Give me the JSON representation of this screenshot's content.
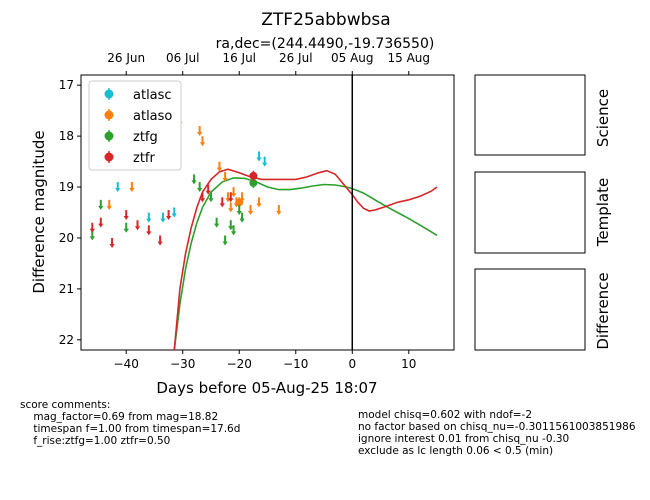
{
  "chart_data": {
    "type": "scatter",
    "title": "ZTF25abbwbsa",
    "subtitle": "ra,dec=(244.4490,-19.736550)",
    "xlabel": "Days before 05-Aug-25 18:07",
    "ylabel": "Difference magnitude",
    "xlim": [
      -48,
      18
    ],
    "ylim": [
      22.2,
      16.8
    ],
    "y_inverted": true,
    "grid": false,
    "legend_position": "upper-left",
    "x_ticks": [
      "−40",
      "−30",
      "−20",
      "−10",
      "0",
      "10"
    ],
    "x_tick_values": [
      -40,
      -30,
      -20,
      -10,
      0,
      10
    ],
    "y_ticks": [
      "17",
      "18",
      "19",
      "20",
      "21",
      "22"
    ],
    "y_tick_values": [
      17,
      18,
      19,
      20,
      21,
      22
    ],
    "top_axis_ticks": [
      "26 Jun",
      "06 Jul",
      "16 Jul",
      "26 Jul",
      "05 Aug",
      "15 Aug"
    ],
    "top_axis_tick_values": [
      -40,
      -30,
      -20,
      -10,
      0,
      10
    ],
    "vertical_line_x": 0,
    "series": [
      {
        "name": "atlasc",
        "color": "#17becf",
        "marker": "upper-limit",
        "x": [
          -41.5,
          -36,
          -33.5,
          -31.5,
          -16.5,
          -15.5
        ],
        "y": [
          19.0,
          19.6,
          19.6,
          19.5,
          18.4,
          18.5
        ]
      },
      {
        "name": "atlaso",
        "color": "#ff7f0e",
        "marker": "upper-limit",
        "x": [
          -43,
          -39,
          -31.5,
          -30.5,
          -27,
          -26.5,
          -23.5,
          -22.5,
          -22,
          -21.5,
          -21,
          -20.5,
          -19.5,
          -18,
          -16.5,
          -13
        ],
        "y": [
          19.35,
          19.0,
          17.5,
          17.7,
          17.9,
          18.1,
          18.6,
          18.8,
          19.2,
          19.4,
          19.1,
          19.3,
          19.2,
          19.45,
          19.3,
          19.45
        ]
      },
      {
        "name": "atlaso",
        "color": "#ff7f0e",
        "marker": "point",
        "x": [
          -20
        ],
        "y": [
          19.3
        ]
      },
      {
        "name": "ztfg",
        "color": "#2ca02c",
        "marker": "upper-limit",
        "x": [
          -46,
          -44.5,
          -40,
          -28,
          -27,
          -25,
          -24,
          -22.5,
          -21.5,
          -21,
          -20,
          -19.5
        ],
        "y": [
          19.95,
          19.35,
          19.8,
          18.85,
          19.0,
          19.2,
          19.7,
          20.05,
          19.75,
          19.85,
          19.45,
          19.6
        ]
      },
      {
        "name": "ztfg",
        "color": "#2ca02c",
        "marker": "point",
        "x": [
          -17.5
        ],
        "y": [
          18.92
        ]
      },
      {
        "name": "ztfr",
        "color": "#d62728",
        "marker": "upper-limit",
        "x": [
          -46,
          -44.5,
          -42.5,
          -40,
          -38,
          -36,
          -34,
          -32.5,
          -26.5,
          -25.5,
          -23,
          -21.5
        ],
        "y": [
          19.8,
          19.7,
          20.1,
          19.55,
          19.75,
          19.85,
          20.05,
          19.55,
          19.2,
          19.05,
          19.3,
          19.2
        ]
      },
      {
        "name": "ztfr",
        "color": "#d62728",
        "marker": "point",
        "x": [
          -17.5
        ],
        "y": [
          18.78
        ]
      }
    ],
    "model_curves": [
      {
        "color": "#2ca02c",
        "x": [
          -31.5,
          -30.5,
          -29.5,
          -28.5,
          -27.5,
          -26.5,
          -25,
          -23,
          -21,
          -19,
          -17,
          -15,
          -13,
          -11,
          -9,
          -7,
          -5,
          -3,
          -1,
          0,
          2,
          4,
          6,
          8,
          10,
          12,
          14,
          15
        ],
        "y": [
          22.2,
          21.3,
          20.6,
          20.1,
          19.7,
          19.4,
          19.1,
          18.9,
          18.82,
          18.83,
          18.9,
          19.0,
          19.05,
          19.05,
          19.02,
          18.98,
          18.95,
          18.96,
          19.0,
          19.03,
          19.12,
          19.25,
          19.38,
          19.5,
          19.62,
          19.75,
          19.88,
          19.95
        ]
      },
      {
        "color": "#d62728",
        "x": [
          -31.5,
          -30.5,
          -29.5,
          -28.5,
          -27.5,
          -26.5,
          -25,
          -23.5,
          -22,
          -20,
          -18,
          -16,
          -14,
          -12,
          -10,
          -8,
          -6,
          -4.5,
          -3,
          -1.5,
          0,
          1,
          2,
          3,
          4,
          6,
          8,
          10,
          12,
          14,
          15
        ],
        "y": [
          22.2,
          21.0,
          20.3,
          19.8,
          19.4,
          19.1,
          18.85,
          18.7,
          18.65,
          18.72,
          18.8,
          18.85,
          18.85,
          18.85,
          18.85,
          18.8,
          18.72,
          18.68,
          18.75,
          18.95,
          19.15,
          19.3,
          19.42,
          19.47,
          19.45,
          19.38,
          19.3,
          19.25,
          19.18,
          19.08,
          19.0
        ]
      }
    ]
  },
  "legend": [
    "atlasc",
    "atlaso",
    "ztfg",
    "ztfr"
  ],
  "side_panels": [
    "Science",
    "Template",
    "Difference"
  ],
  "comments_left": "score comments:\n    mag_factor=0.69 from mag=18.82\n    timespan f=1.00 from timespan=17.6d\n    f_rise:ztfg=1.00 ztfr=0.50",
  "comments_right": "model chisq=0.602 with ndof=-2\nno factor based on chisq_nu=-0.3011561003851986\nignore interest 0.01 from chisq_nu -0.30\nexclude as lc length 0.06 < 0.5 (min)"
}
